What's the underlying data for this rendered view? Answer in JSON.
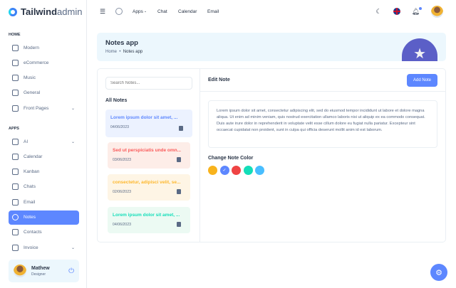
{
  "brand": {
    "name_bold": "Tailwind",
    "name_light": "admin"
  },
  "sidebar": {
    "sections": [
      "HOME",
      "APPS"
    ],
    "home_items": [
      {
        "label": "Modern",
        "icon": "grid-icon"
      },
      {
        "label": "eCommerce",
        "icon": "shopping-bag-icon"
      },
      {
        "label": "Music",
        "icon": "music-icon"
      },
      {
        "label": "General",
        "icon": "chart-icon"
      },
      {
        "label": "Front Pages",
        "icon": "page-icon",
        "chevron": true
      }
    ],
    "app_items": [
      {
        "label": "AI",
        "icon": "ai-icon",
        "chevron": true
      },
      {
        "label": "Calendar",
        "icon": "calendar-icon"
      },
      {
        "label": "Kanban",
        "icon": "kanban-icon"
      },
      {
        "label": "Chats",
        "icon": "chat-icon"
      },
      {
        "label": "Email",
        "icon": "mail-icon"
      },
      {
        "label": "Notes",
        "icon": "notes-icon",
        "active": true
      },
      {
        "label": "Contacts",
        "icon": "contacts-icon"
      },
      {
        "label": "Invoice",
        "icon": "invoice-icon",
        "chevron": true
      }
    ],
    "user": {
      "name": "Mathew",
      "role": "Designer"
    }
  },
  "header": {
    "nav": [
      "Apps",
      "Chat",
      "Calendar",
      "Email"
    ]
  },
  "breadcrumb": {
    "title": "Notes app",
    "home": "Home",
    "current": "Notes app"
  },
  "notes_panel": {
    "search_placeholder": "Search Notes...",
    "title": "All Notes",
    "notes": [
      {
        "title": "Lorem ipsum dolor sit amet, ...",
        "date": "04/06/2023",
        "color": "#5d87ff",
        "bg": "#ecf2ff",
        "selected": true
      },
      {
        "title": "Sed ut perspiciatis unde omn...",
        "date": "03/06/2023",
        "color": "#fa5a5a",
        "bg": "#fdede8"
      },
      {
        "title": "consectetur, adipisci velit, se...",
        "date": "02/06/2023",
        "color": "#fdb72c",
        "bg": "#fef5e5"
      },
      {
        "title": "Lorem ipsum dolor sit amet, ...",
        "date": "04/06/2023",
        "color": "#13deb9",
        "bg": "#ecfaf3"
      }
    ]
  },
  "editor": {
    "title": "Edit Note",
    "add_label": "Add Note",
    "content": "Lorem ipsum dolor sit amet, consectetur adipiscing elit, sed do eiusmod tempor incididunt ut labore et dolore magna aliqua. Ut enim ad minim veniam, quis nostrud exercitation ullamco laboris nisi ut aliquip ex ea commodo consequat. Duis aute irure dolor in reprehenderit in voluptate velit esse cillum dolore eu fugiat nulla pariatur. Excepteur sint occaecat cupidatat non proident, sunt in culpa qui officia deserunt mollit anim id est laborum.",
    "color_label": "Change Note Color",
    "colors": [
      "#f8b31c",
      "#5d87ff",
      "#ef4444",
      "#13deb9",
      "#49beff"
    ],
    "selected_color": "#5d87ff"
  }
}
